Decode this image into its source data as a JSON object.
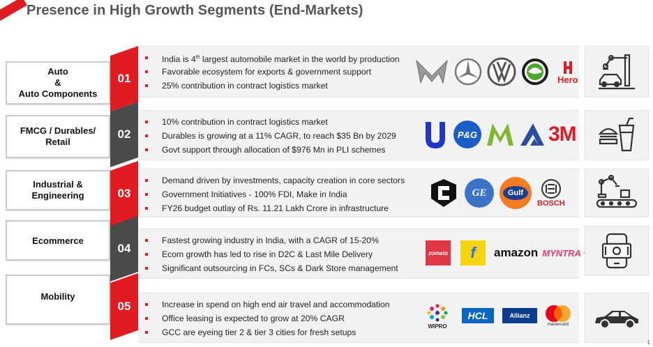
{
  "title": "Presence in High Growth Segments (End-Markets)",
  "colors": {
    "accent": "#e11b22",
    "dark": "#4a4a4a",
    "panel": "#f2f2f2"
  },
  "segments": [
    {
      "label_lines": [
        "Auto",
        "&",
        "Auto Components"
      ],
      "number": "01",
      "bullets": [
        "India is 4th largest automobile market in the world by production",
        "Favorable ecosystem for exports & government support",
        "25% contribution in contract logistics market"
      ],
      "logos": [
        "Mahindra",
        "Mercedes-Benz",
        "VW",
        "Škoda",
        "Hero"
      ],
      "icon": "robot-arm-car-icon"
    },
    {
      "label_lines": [
        "FMCG / Durables/",
        "Retail"
      ],
      "number": "02",
      "bullets": [
        "10% contribution in contract logistics market",
        "Durables is growing at a 11% CAGR, to reach $35 Bn by 2029",
        "Govt support through allocation of $976 Mn in PLI schemes"
      ],
      "logos": [
        "Unilever",
        "P&G",
        "Marico",
        "ITC",
        "3M"
      ],
      "icon": "burger-drink-icon"
    },
    {
      "label_lines": [
        "Industrial &",
        "Engineering"
      ],
      "number": "03",
      "bullets": [
        "Demand driven by investments, capacity creation in core sectors",
        "Government Initiatives - 100% FDI, Make in India",
        "FY26 budget outlay of Rs. 11.21 Lakh Crore in infrastructure"
      ],
      "logos": [
        "Cummins",
        "GE",
        "Gulf",
        "BOSCH"
      ],
      "icon": "robot-conveyor-icon"
    },
    {
      "label_lines": [
        "Ecommerce"
      ],
      "number": "04",
      "bullets": [
        "Fastest growing industry in India, with a CAGR of 15-20%",
        "Ecom growth has led to rise in D2C & Last Mile Delivery",
        "Significant outsourcing in FCs, SCs & Dark Store management"
      ],
      "logos": [
        "zomato",
        "Flipkart",
        "amazon",
        "MYNTRA"
      ],
      "icon": "phone-cash-icon"
    },
    {
      "label_lines": [
        "Mobility"
      ],
      "number": "05",
      "bullets": [
        "Increase in spend on high end air travel and accommodation",
        "Office leasing is expected to grow at 20% CAGR",
        "GCC are eyeing tier 2 & tier 3 cities for fresh setups"
      ],
      "logos": [
        "WIPRO",
        "HCL",
        "Allianz",
        "mastercard"
      ],
      "icon": "car-icon"
    }
  ],
  "slide_number": "1"
}
